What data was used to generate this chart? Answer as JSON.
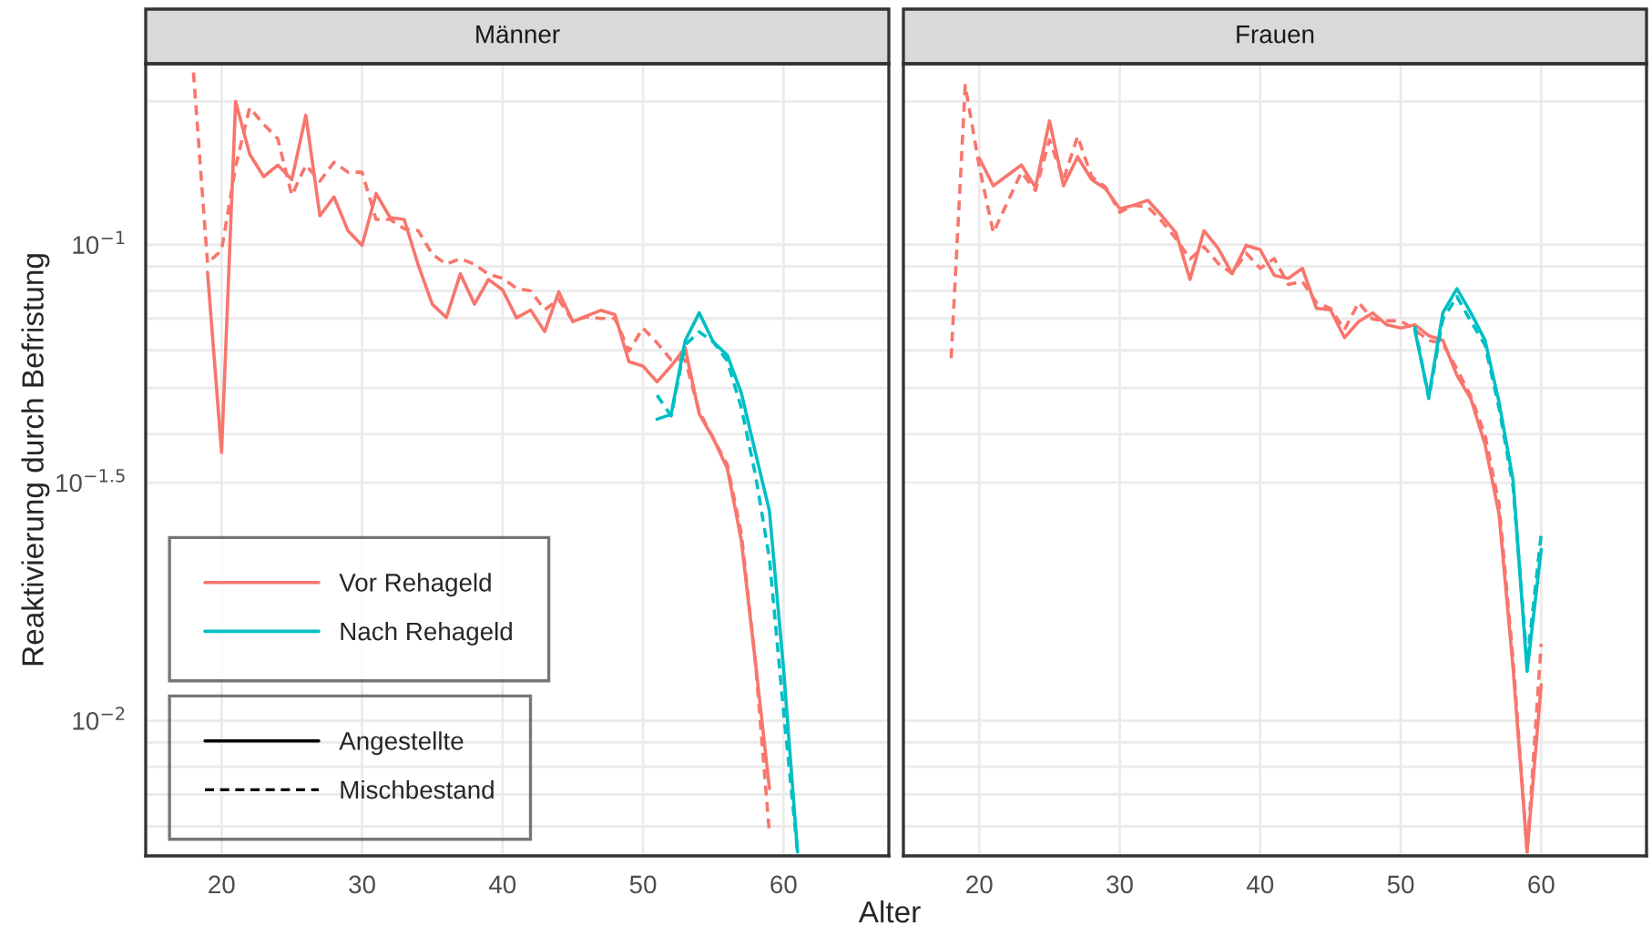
{
  "chart_data": [
    {
      "type": "line",
      "title": "Männer",
      "xlabel": "Alter",
      "ylabel": "Reaktivierung durch Befristung",
      "log": "y",
      "xlim": [
        14.6,
        67.5
      ],
      "xticks": [
        20,
        30,
        40,
        50,
        60
      ],
      "ylim": [
        0.0052,
        0.24
      ],
      "yticks": [
        {
          "value": 0.2,
          "label": null
        },
        {
          "value": 0.1,
          "label": "10$^{−1}$"
        },
        {
          "value": 0.09,
          "label": null
        },
        {
          "value": 0.08,
          "label": null
        },
        {
          "value": 0.07,
          "label": null
        },
        {
          "value": 0.06,
          "label": null
        },
        {
          "value": 0.05,
          "label": null
        },
        {
          "value": 0.04,
          "label": null
        },
        {
          "value": 0.0316228,
          "label": "10$^{−1.5}$"
        },
        {
          "value": 0.01,
          "label": "10$^{−2}$"
        },
        {
          "value": 0.009,
          "label": null
        },
        {
          "value": 0.008,
          "label": null
        },
        {
          "value": 0.007,
          "label": null
        },
        {
          "value": 0.006,
          "label": null
        }
      ],
      "grid": true,
      "legend": "bottom left",
      "annotations": [
        "Angestellte",
        "Mischbestand"
      ],
      "series": [
        {
          "name": "Vor Rehageld",
          "color": "#f8766d",
          "line_style": "solid",
          "x": [
            19,
            20,
            21,
            22,
            23,
            24,
            25,
            26,
            27,
            28,
            29,
            30,
            31,
            32,
            33,
            34,
            35,
            36,
            37,
            38,
            39,
            40,
            41,
            42,
            43,
            44,
            45,
            46,
            47,
            48,
            49,
            50,
            51,
            52,
            53,
            54,
            55,
            56,
            57,
            58,
            59
          ],
          "values": [
            0.0875,
            0.0366,
            0.2,
            0.155,
            0.139,
            0.147,
            0.137,
            0.187,
            0.115,
            0.126,
            0.107,
            0.0997,
            0.128,
            0.114,
            0.113,
            0.0906,
            0.075,
            0.0703,
            0.0869,
            0.075,
            0.0845,
            0.0804,
            0.0702,
            0.0729,
            0.0657,
            0.0796,
            0.0689,
            0.0709,
            0.0728,
            0.0713,
            0.0568,
            0.0556,
            0.0515,
            0.0556,
            0.0607,
            0.0441,
            0.0392,
            0.0339,
            0.0239,
            0.0133,
            0.0072
          ]
        },
        {
          "color": "#f8766d",
          "line_style": "dashed",
          "x": [
            18,
            19,
            20,
            21,
            22,
            23,
            24,
            25,
            26,
            27,
            28,
            29,
            30,
            31,
            32,
            33,
            34,
            35,
            36,
            37,
            38,
            39,
            40,
            41,
            42,
            43,
            44,
            45,
            46,
            47,
            48,
            49,
            50,
            51,
            52,
            53,
            54,
            55,
            56,
            57,
            58,
            59
          ],
          "values": [
            0.23,
            0.0914,
            0.0974,
            0.146,
            0.194,
            0.179,
            0.167,
            0.127,
            0.147,
            0.136,
            0.149,
            0.142,
            0.142,
            0.113,
            0.113,
            0.108,
            0.107,
            0.0955,
            0.091,
            0.0935,
            0.091,
            0.0867,
            0.085,
            0.081,
            0.08,
            0.073,
            0.0767,
            0.0692,
            0.0705,
            0.07,
            0.07,
            0.0598,
            0.0668,
            0.0622,
            0.0573,
            0.0573,
            0.0447,
            0.0392,
            0.0345,
            0.0247,
            0.0133,
            0.0058
          ]
        },
        {
          "name": "Nach Rehageld",
          "color": "#00bfc4",
          "line_style": "solid",
          "x": [
            51,
            52,
            53,
            54,
            55,
            56,
            57,
            58,
            59,
            60,
            61
          ],
          "values": [
            0.043,
            0.044,
            0.0628,
            0.0719,
            0.0625,
            0.0586,
            0.0488,
            0.0366,
            0.0276,
            0.0129,
            0.0053
          ]
        },
        {
          "color": "#00bfc4",
          "line_style": "dashed",
          "x": [
            51,
            52,
            53,
            54,
            55,
            56,
            57,
            58,
            59,
            60,
            61
          ],
          "values": [
            0.0483,
            0.0437,
            0.0616,
            0.0656,
            0.0625,
            0.057,
            0.0454,
            0.0329,
            0.0219,
            0.0105,
            0.0053
          ]
        }
      ]
    },
    {
      "type": "line",
      "title": "Frauen",
      "log": "y",
      "tick_labels": "x",
      "xlim": [
        14.6,
        67.5
      ],
      "xticks": [
        20,
        30,
        40,
        50,
        60
      ],
      "ylim": [
        0.0052,
        0.24
      ],
      "yticks": [
        {
          "value": 0.2,
          "label": null
        },
        {
          "value": 0.1,
          "label": null
        },
        {
          "value": 0.09,
          "label": null
        },
        {
          "value": 0.08,
          "label": null
        },
        {
          "value": 0.07,
          "label": null
        },
        {
          "value": 0.06,
          "label": null
        },
        {
          "value": 0.05,
          "label": null
        },
        {
          "value": 0.04,
          "label": null
        },
        {
          "value": 0.0316228,
          "label": null
        },
        {
          "value": 0.01,
          "label": null
        },
        {
          "value": 0.009,
          "label": null
        },
        {
          "value": 0.008,
          "label": null
        },
        {
          "value": 0.007,
          "label": null
        },
        {
          "value": 0.006,
          "label": null
        }
      ],
      "grid": true,
      "series": [
        {
          "color": "#f8766d",
          "line_style": "solid",
          "x": [
            20,
            21,
            22,
            23,
            24,
            25,
            26,
            27,
            28,
            29,
            30,
            31,
            32,
            33,
            34,
            35,
            36,
            37,
            38,
            39,
            40,
            41,
            42,
            43,
            44,
            45,
            46,
            47,
            48,
            49,
            50,
            51,
            52,
            53,
            54,
            55,
            56,
            57,
            58,
            59,
            60
          ],
          "values": [
            0.152,
            0.133,
            null,
            0.147,
            0.132,
            0.182,
            0.133,
            0.153,
            0.137,
            0.131,
            0.119,
            0.121,
            0.124,
            0.115,
            0.106,
            0.0845,
            0.107,
            0.0983,
            0.0869,
            0.0997,
            0.0976,
            0.0862,
            0.085,
            0.0892,
            0.0735,
            0.073,
            0.0638,
            0.0689,
            0.0719,
            0.0679,
            0.0668,
            0.0679,
            0.0644,
            0.063,
            0.0532,
            0.0474,
            0.0381,
            0.0272,
            0.0129,
            0.0053,
            0.0119
          ]
        },
        {
          "color": "#f8766d",
          "line_style": "dashed",
          "x": [
            18,
            19,
            20,
            21,
            22,
            23,
            24,
            25,
            26,
            27,
            28,
            29,
            30,
            31,
            32,
            33,
            34,
            35,
            36,
            37,
            38,
            39,
            40,
            41,
            42,
            43,
            44,
            45,
            46,
            47,
            48,
            49,
            50,
            51,
            52,
            53,
            54,
            55,
            56,
            57,
            58,
            59,
            60
          ],
          "values": [
            0.0578,
            0.216,
            0.146,
            0.106,
            null,
            0.142,
            0.13,
            0.166,
            0.137,
            0.169,
            0.139,
            0.132,
            0.117,
            0.121,
            0.12,
            0.112,
            0.103,
            0.0933,
            0.099,
            0.0914,
            0.087,
            0.096,
            0.0892,
            0.0935,
            0.0825,
            0.0837,
            0.0756,
            0.0735,
            0.0663,
            0.0756,
            0.0698,
            0.0692,
            0.0692,
            0.0663,
            0.0629,
            0.062,
            0.0548,
            0.048,
            0.0398,
            0.0285,
            0.0134,
            0.0053,
            0.0145
          ]
        },
        {
          "color": "#00bfc4",
          "line_style": "solid",
          "x": [
            51,
            52,
            53,
            54,
            55,
            56,
            57,
            58,
            59,
            60
          ],
          "values": [
            0.0663,
            0.048,
            0.0719,
            0.0808,
            0.0719,
            0.063,
            0.0467,
            0.032,
            0.0127,
            0.0229
          ]
        },
        {
          "color": "#00bfc4",
          "line_style": "dashed",
          "x": [
            51,
            52,
            53,
            54,
            55,
            56,
            57,
            58,
            59,
            60
          ],
          "values": [
            0.0675,
            0.0475,
            0.0698,
            0.0778,
            0.069,
            0.0616,
            0.0454,
            0.031,
            0.0133,
            0.0246
          ]
        }
      ]
    }
  ]
}
